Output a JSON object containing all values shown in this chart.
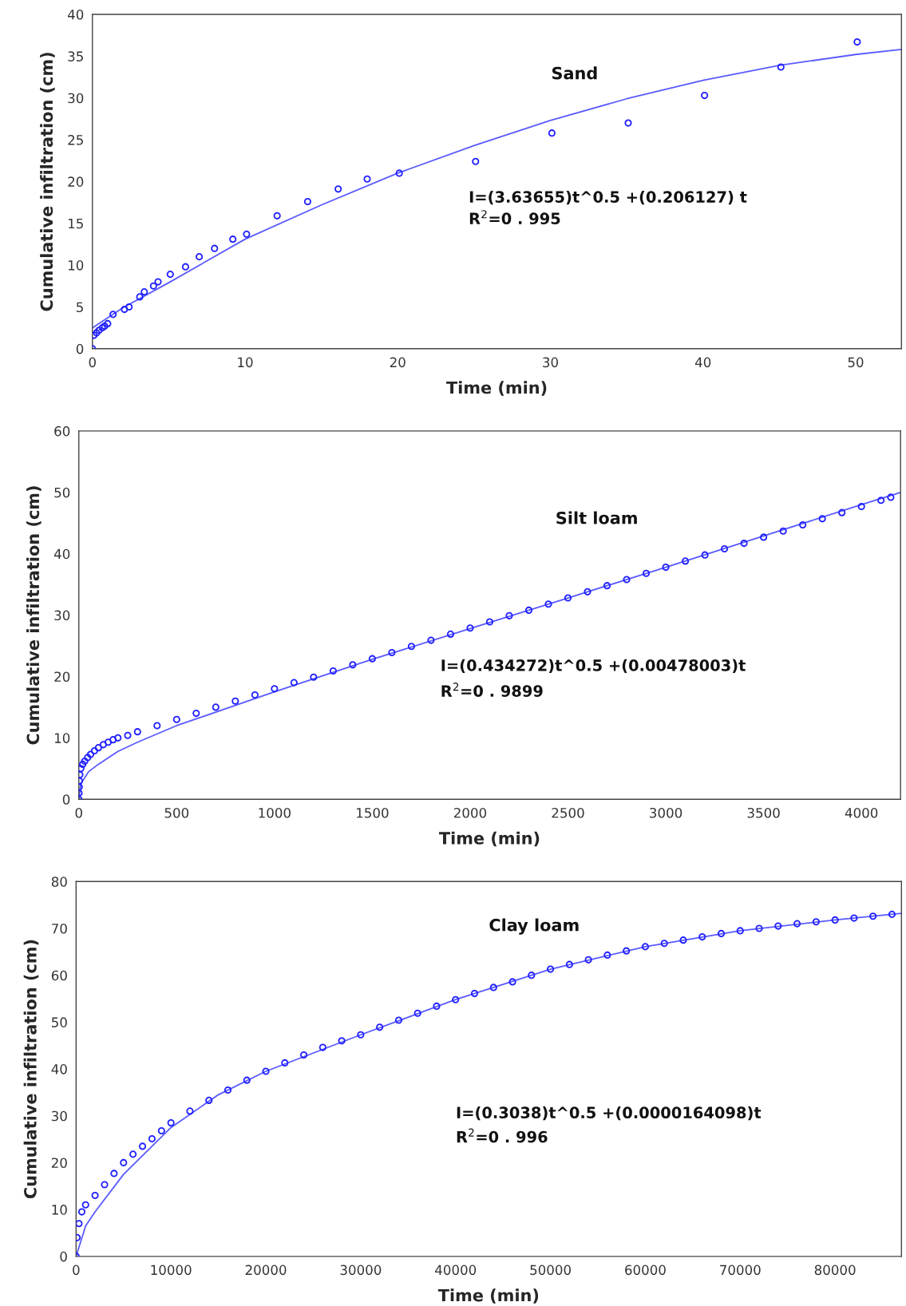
{
  "chart_data": [
    {
      "type": "scatter",
      "xlabel": "Time (min)",
      "ylabel": "Cumulative infiltration (cm)",
      "annotations": [
        "Sand",
        "I=(3.63655)t^0.5 +(0.206127) t",
        "R$^{2}$=0 . 995"
      ],
      "xlim": [
        0,
        53
      ],
      "ylim": [
        0,
        40
      ],
      "xticks": [
        0,
        10,
        20,
        30,
        40,
        50
      ],
      "yticks": [
        0,
        5,
        10,
        15,
        20,
        25,
        30,
        35,
        40
      ],
      "grid": false,
      "legend": false,
      "marker": "circle",
      "series": [
        {
          "color": "#2020ff",
          "x": [
            0,
            0.1,
            0.27,
            0.43,
            0.65,
            0.8,
            1.0,
            1.35,
            2.1,
            2.4,
            3.1,
            3.4,
            4.0,
            4.3,
            5.1,
            6.1,
            7.0,
            8.0,
            9.2,
            10.1,
            12.1,
            14.1,
            16.1,
            18.0,
            20.1,
            25.1,
            30.1,
            35.1,
            40.1,
            45.1,
            50.1
          ],
          "values": [
            0,
            1.6,
            1.9,
            2.2,
            2.5,
            2.7,
            3.0,
            4.1,
            4.7,
            5.0,
            6.2,
            6.8,
            7.5,
            8.0,
            8.9,
            9.8,
            11.0,
            12.0,
            13.1,
            13.7,
            15.9,
            17.6,
            19.1,
            20.3,
            21.0,
            22.4,
            25.8,
            27.0,
            30.3,
            33.7,
            36.7
          ]
        },
        {
          "type": "line",
          "color": "#5a5aff",
          "marker": "none",
          "x": [
            0,
            2,
            5,
            10,
            15,
            20,
            25,
            30,
            35,
            40,
            45,
            50,
            53
          ],
          "values": [
            2.5,
            4.9,
            7.9,
            13.1,
            17.2,
            21.0,
            24.3,
            27.3,
            29.9,
            32.1,
            33.9,
            35.2,
            35.8
          ]
        }
      ]
    },
    {
      "type": "scatter",
      "xlabel": "Time (min)",
      "ylabel": "Cumulative infiltration (cm)",
      "annotations": [
        "Silt loam",
        "I=(0.434272)t^0.5 +(0.00478003)t",
        "R$^{2}$=0 . 9899"
      ],
      "xlim": [
        0,
        4200
      ],
      "ylim": [
        0,
        60
      ],
      "xticks": [
        0,
        500,
        1000,
        1500,
        2000,
        2500,
        3000,
        3500,
        4000
      ],
      "yticks": [
        0,
        10,
        20,
        30,
        40,
        50,
        60
      ],
      "grid": false,
      "legend": false,
      "marker": "circle",
      "series": [
        {
          "color": "#2020ff",
          "x": [
            0,
            1,
            2,
            3,
            5,
            10,
            20,
            30,
            45,
            60,
            80,
            100,
            125,
            150,
            175,
            200,
            250,
            300,
            400,
            500,
            600,
            700,
            800,
            900,
            1000,
            1100,
            1200,
            1300,
            1400,
            1500,
            1600,
            1700,
            1800,
            1900,
            2000,
            2100,
            2200,
            2300,
            2400,
            2500,
            2600,
            2700,
            2800,
            2900,
            3000,
            3100,
            3200,
            3300,
            3400,
            3500,
            3600,
            3700,
            3800,
            3900,
            4000,
            4100,
            4150
          ],
          "values": [
            0,
            1,
            2,
            3,
            4,
            5,
            5.7,
            6.2,
            6.8,
            7.3,
            7.9,
            8.4,
            8.9,
            9.3,
            9.7,
            10.0,
            10.4,
            11.0,
            12.0,
            13.0,
            14.0,
            15.0,
            16.0,
            17.0,
            18.0,
            19.0,
            19.9,
            20.9,
            21.9,
            22.9,
            23.9,
            24.9,
            25.9,
            26.9,
            27.9,
            28.9,
            29.9,
            30.8,
            31.8,
            32.8,
            33.8,
            34.8,
            35.8,
            36.8,
            37.8,
            38.8,
            39.8,
            40.8,
            41.7,
            42.7,
            43.7,
            44.7,
            45.7,
            46.7,
            47.7,
            48.7,
            49.2
          ]
        },
        {
          "type": "line",
          "color": "#5a5aff",
          "marker": "none",
          "x": [
            0,
            10,
            50,
            100,
            200,
            300,
            500,
            1000,
            1500,
            2000,
            2500,
            3000,
            3500,
            4000,
            4200
          ],
          "values": [
            0,
            2.5,
            4.5,
            5.7,
            7.8,
            9.3,
            12.0,
            17.5,
            22.8,
            27.8,
            32.8,
            37.8,
            42.9,
            48.0,
            50.0
          ]
        }
      ]
    },
    {
      "type": "scatter",
      "xlabel": "Time (min)",
      "ylabel": "Cumulative infiltration (cm)",
      "annotations": [
        "Clay loam",
        "I=(0.3038)t^0.5 +(0.0000164098)t",
        "R$^{2}$=0 . 996"
      ],
      "xlim": [
        0,
        87000
      ],
      "ylim": [
        0,
        80
      ],
      "xticks": [
        0,
        10000,
        20000,
        30000,
        40000,
        50000,
        60000,
        70000,
        80000
      ],
      "yticks": [
        0,
        10,
        20,
        30,
        40,
        50,
        60,
        70,
        80
      ],
      "grid": false,
      "legend": false,
      "marker": "circle",
      "series": [
        {
          "color": "#2020ff",
          "x": [
            0,
            100,
            300,
            600,
            1000,
            2000,
            3000,
            4000,
            5000,
            6000,
            7000,
            8000,
            9000,
            10000,
            12000,
            14000,
            16000,
            18000,
            20000,
            22000,
            24000,
            26000,
            28000,
            30000,
            32000,
            34000,
            36000,
            38000,
            40000,
            42000,
            44000,
            46000,
            48000,
            50000,
            52000,
            54000,
            56000,
            58000,
            60000,
            62000,
            64000,
            66000,
            68000,
            70000,
            72000,
            74000,
            76000,
            78000,
            80000,
            82000,
            84000,
            86000
          ],
          "values": [
            0,
            4.0,
            7.0,
            9.5,
            11.0,
            13.0,
            15.3,
            17.7,
            20.0,
            21.8,
            23.5,
            25.1,
            26.8,
            28.5,
            31.0,
            33.3,
            35.5,
            37.6,
            39.5,
            41.3,
            43.0,
            44.6,
            46.0,
            47.3,
            48.9,
            50.4,
            51.9,
            53.4,
            54.8,
            56.1,
            57.4,
            58.6,
            60.0,
            61.3,
            62.3,
            63.3,
            64.3,
            65.2,
            66.1,
            66.8,
            67.5,
            68.2,
            68.9,
            69.5,
            70.0,
            70.5,
            71.0,
            71.4,
            71.8,
            72.2,
            72.6,
            73.0
          ]
        },
        {
          "type": "line",
          "color": "#5a5aff",
          "marker": "none",
          "x": [
            0,
            1000,
            2000,
            5000,
            10000,
            15000,
            20000,
            30000,
            40000,
            50000,
            60000,
            70000,
            80000,
            87000
          ],
          "values": [
            0,
            6.5,
            9.5,
            17.5,
            27.5,
            34.5,
            39.5,
            47.3,
            54.8,
            61.3,
            66.1,
            69.5,
            71.8,
            73.2
          ]
        }
      ]
    }
  ]
}
